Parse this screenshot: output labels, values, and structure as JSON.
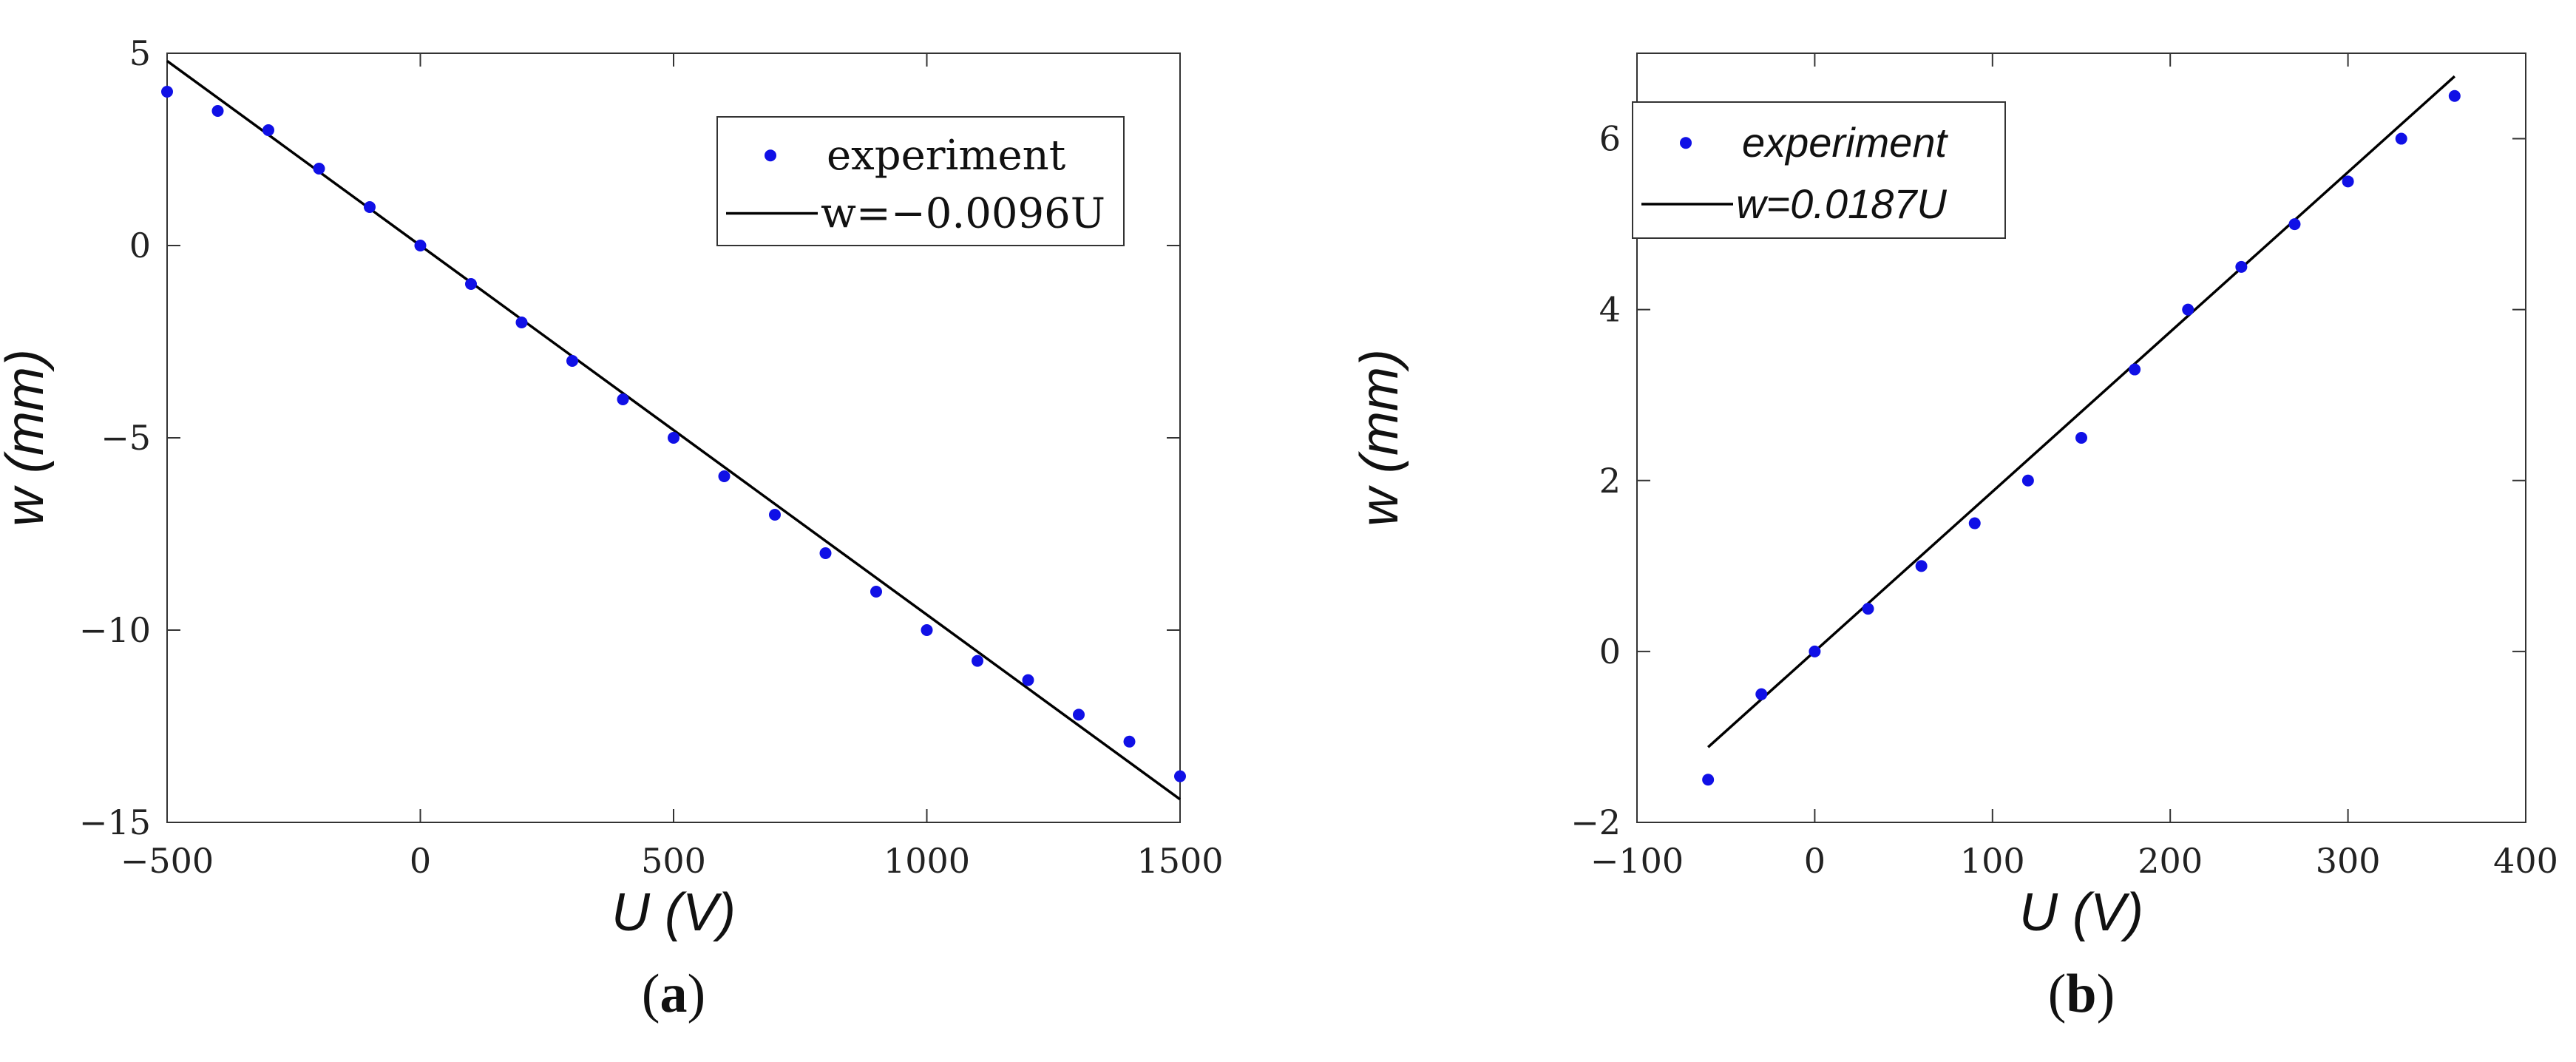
{
  "chart_data": [
    {
      "panel_label": "a",
      "type": "scatter",
      "title": "",
      "xlabel": "U (V)",
      "ylabel": "w (mm)",
      "xlim": [
        -500,
        1500
      ],
      "ylim": [
        -15,
        5
      ],
      "xticks": [
        -500,
        0,
        500,
        1000,
        1500
      ],
      "xtick_labels": [
        "−500",
        "0",
        "500",
        "1000",
        "1500"
      ],
      "yticks": [
        -15,
        -10,
        -5,
        0,
        5
      ],
      "ytick_labels": [
        "−15",
        "−10",
        "−5",
        "0",
        "5"
      ],
      "grid": false,
      "legend_position": "top-right",
      "legend_style": "serif",
      "point_color": "#1010e6",
      "line_color": "#000000",
      "series": [
        {
          "name": "experiment",
          "kind": "points",
          "x": [
            -500,
            -400,
            -300,
            -200,
            -100,
            0,
            100,
            200,
            300,
            400,
            500,
            600,
            700,
            800,
            900,
            1000,
            1100,
            1200,
            1300,
            1400,
            1500
          ],
          "y": [
            4.0,
            3.5,
            3.0,
            2.0,
            1.0,
            0.0,
            -1.0,
            -2.0,
            -3.0,
            -4.0,
            -5.0,
            -6.0,
            -7.0,
            -8.0,
            -9.0,
            -10.0,
            -10.8,
            -11.3,
            -12.2,
            -12.9,
            -13.8
          ]
        },
        {
          "name": "w=−0.0096U",
          "kind": "line",
          "x": [
            -500,
            1500
          ],
          "y": [
            4.8,
            -14.4
          ]
        }
      ]
    },
    {
      "panel_label": "b",
      "type": "scatter",
      "title": "",
      "xlabel": "U (V)",
      "ylabel": "w (mm)",
      "xlim": [
        -100,
        400
      ],
      "ylim": [
        -2,
        7
      ],
      "xticks": [
        -100,
        0,
        100,
        200,
        300,
        400
      ],
      "xtick_labels": [
        "−100",
        "0",
        "100",
        "200",
        "300",
        "400"
      ],
      "yticks": [
        -2,
        0,
        2,
        4,
        6
      ],
      "ytick_labels": [
        "−2",
        "0",
        "2",
        "4",
        "6"
      ],
      "grid": false,
      "legend_position": "top-left",
      "legend_style": "italic",
      "point_color": "#1010e6",
      "line_color": "#000000",
      "series": [
        {
          "name": "experiment",
          "kind": "points",
          "x": [
            -60,
            -30,
            0,
            30,
            60,
            90,
            120,
            150,
            180,
            210,
            240,
            270,
            300,
            330,
            360
          ],
          "y": [
            -1.5,
            -0.5,
            0.0,
            0.5,
            1.0,
            1.5,
            2.0,
            2.5,
            3.3,
            4.0,
            4.5,
            5.0,
            5.5,
            6.0,
            6.5
          ]
        },
        {
          "name": "w=0.0187U",
          "kind": "line",
          "x": [
            -60,
            360
          ],
          "y": [
            -1.12,
            6.73
          ]
        }
      ]
    }
  ]
}
